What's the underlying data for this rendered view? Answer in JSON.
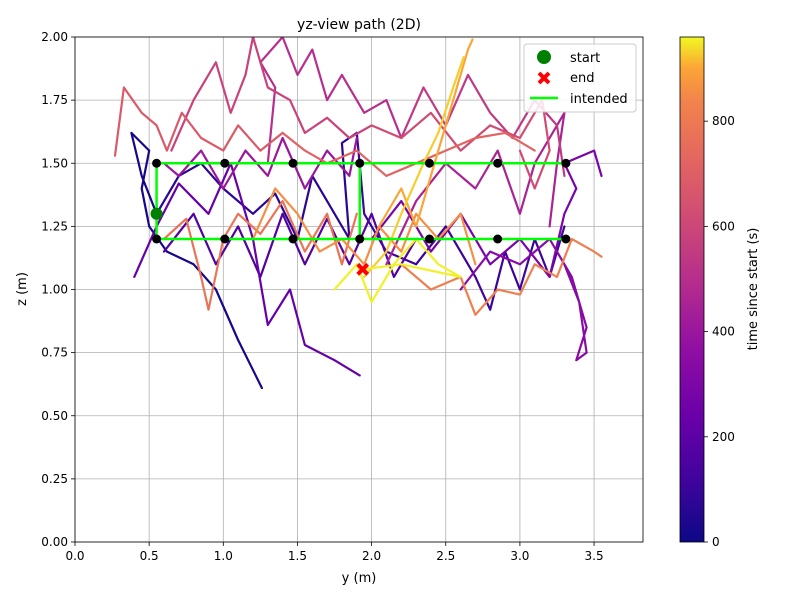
{
  "chart_data": {
    "type": "line",
    "title": "yz-view path (2D)",
    "xlabel": "y (m)",
    "ylabel": "z (m)",
    "xlim": [
      0,
      3.83
    ],
    "ylim": [
      0,
      2.0
    ],
    "x_ticks": [
      0.0,
      0.5,
      1.0,
      1.5,
      2.0,
      2.5,
      3.0,
      3.5
    ],
    "x_tick_labels": [
      "0.0",
      "0.5",
      "1.0",
      "1.5",
      "2.0",
      "2.5",
      "3.0",
      "3.5"
    ],
    "y_ticks": [
      0.0,
      0.25,
      0.5,
      0.75,
      1.0,
      1.25,
      1.5,
      1.75,
      2.0
    ],
    "y_tick_labels": [
      "0.00",
      "0.25",
      "0.50",
      "0.75",
      "1.00",
      "1.25",
      "1.50",
      "1.75",
      "2.00"
    ],
    "grid": true,
    "legend_position": "top-right",
    "legend": [
      {
        "label": "start",
        "marker": "circle",
        "color": "#008000"
      },
      {
        "label": "end",
        "marker": "x",
        "color": "#ff0000"
      },
      {
        "label": "intended",
        "marker": "line",
        "color": "#00ff00"
      }
    ],
    "colorbar": {
      "label": "time since start (s)",
      "colormap": "plasma",
      "range": [
        0,
        960
      ],
      "ticks": [
        0,
        200,
        400,
        600,
        800
      ],
      "tick_labels": [
        "0",
        "200",
        "400",
        "600",
        "800"
      ]
    },
    "intended_path": {
      "color": "#00ff00",
      "points": [
        [
          0.55,
          1.5
        ],
        [
          3.31,
          1.5
        ],
        [
          1.92,
          1.5
        ],
        [
          1.92,
          1.2
        ],
        [
          3.31,
          1.2
        ],
        [
          0.55,
          1.2
        ],
        [
          0.55,
          1.5
        ]
      ]
    },
    "waypoints": [
      [
        0.55,
        1.5
      ],
      [
        1.01,
        1.5
      ],
      [
        1.47,
        1.5
      ],
      [
        1.92,
        1.5
      ],
      [
        2.39,
        1.5
      ],
      [
        2.85,
        1.5
      ],
      [
        3.31,
        1.5
      ],
      [
        0.55,
        1.2
      ],
      [
        1.01,
        1.2
      ],
      [
        1.47,
        1.2
      ],
      [
        1.92,
        1.2
      ],
      [
        2.39,
        1.2
      ],
      [
        2.85,
        1.2
      ],
      [
        3.31,
        1.2
      ]
    ],
    "start_point": [
      0.55,
      1.3
    ],
    "end_point": [
      1.94,
      1.08
    ],
    "path_segments": [
      {
        "t": 20,
        "points": [
          [
            1.26,
            0.61
          ],
          [
            1.1,
            0.8
          ],
          [
            0.95,
            1.0
          ],
          [
            0.8,
            1.1
          ],
          [
            0.62,
            1.15
          ],
          [
            0.5,
            1.25
          ],
          [
            0.45,
            1.4
          ],
          [
            0.5,
            1.55
          ],
          [
            0.38,
            1.62
          ],
          [
            0.45,
            1.45
          ],
          [
            0.55,
            1.3
          ]
        ]
      },
      {
        "t": 70,
        "points": [
          [
            0.55,
            1.3
          ],
          [
            0.7,
            1.45
          ],
          [
            0.85,
            1.5
          ],
          [
            1.0,
            1.4
          ],
          [
            1.2,
            1.3
          ],
          [
            1.35,
            1.38
          ],
          [
            1.5,
            1.2
          ],
          [
            1.6,
            1.45
          ],
          [
            1.7,
            1.35
          ],
          [
            1.85,
            1.2
          ],
          [
            1.8,
            1.58
          ],
          [
            1.9,
            1.62
          ]
        ]
      },
      {
        "t": 110,
        "points": [
          [
            1.9,
            1.62
          ],
          [
            1.95,
            1.3
          ],
          [
            2.1,
            1.15
          ],
          [
            2.3,
            1.1
          ],
          [
            2.5,
            1.25
          ],
          [
            2.7,
            1.05
          ],
          [
            2.8,
            0.92
          ],
          [
            2.9,
            1.15
          ],
          [
            3.0,
            1.0
          ],
          [
            3.1,
            1.2
          ],
          [
            3.2,
            1.05
          ],
          [
            3.3,
            1.25
          ]
        ]
      },
      {
        "t": 170,
        "points": [
          [
            0.6,
            1.15
          ],
          [
            0.8,
            1.3
          ],
          [
            0.95,
            1.1
          ],
          [
            1.1,
            1.25
          ],
          [
            1.25,
            1.05
          ],
          [
            1.4,
            1.3
          ],
          [
            1.55,
            1.1
          ],
          [
            1.7,
            1.28
          ],
          [
            1.85,
            1.1
          ],
          [
            2.0,
            1.3
          ],
          [
            2.15,
            1.05
          ],
          [
            2.3,
            1.2
          ]
        ]
      },
      {
        "t": 230,
        "points": [
          [
            0.4,
            1.05
          ],
          [
            0.55,
            1.25
          ],
          [
            0.7,
            1.42
          ],
          [
            0.9,
            1.3
          ],
          [
            1.05,
            1.5
          ],
          [
            1.2,
            1.2
          ],
          [
            1.3,
            0.86
          ],
          [
            1.45,
            1.0
          ],
          [
            1.55,
            0.78
          ],
          [
            1.75,
            0.72
          ],
          [
            1.92,
            0.66
          ]
        ]
      },
      {
        "t": 290,
        "points": [
          [
            2.0,
            1.2
          ],
          [
            2.2,
            1.35
          ],
          [
            2.4,
            1.15
          ],
          [
            2.6,
            1.3
          ],
          [
            2.8,
            1.1
          ],
          [
            3.0,
            1.2
          ],
          [
            3.2,
            1.05
          ],
          [
            3.3,
            1.3
          ],
          [
            3.38,
            1.4
          ],
          [
            3.3,
            1.5
          ],
          [
            3.5,
            1.55
          ],
          [
            3.55,
            1.45
          ]
        ]
      },
      {
        "t": 340,
        "points": [
          [
            2.6,
            1.0
          ],
          [
            2.8,
            1.15
          ],
          [
            3.0,
            1.1
          ],
          [
            3.2,
            1.2
          ],
          [
            3.35,
            1.05
          ],
          [
            3.45,
            0.85
          ],
          [
            3.38,
            0.72
          ],
          [
            3.45,
            0.75
          ],
          [
            3.4,
            0.95
          ],
          [
            3.3,
            1.1
          ]
        ]
      },
      {
        "t": 400,
        "points": [
          [
            1.9,
            1.6
          ],
          [
            1.85,
            1.45
          ],
          [
            1.7,
            1.55
          ],
          [
            1.55,
            1.4
          ],
          [
            1.4,
            1.6
          ],
          [
            1.3,
            1.45
          ],
          [
            1.15,
            1.55
          ],
          [
            1.0,
            1.4
          ],
          [
            0.85,
            1.55
          ],
          [
            0.7,
            1.45
          ],
          [
            0.6,
            1.5
          ]
        ]
      },
      {
        "t": 450,
        "points": [
          [
            2.1,
            1.1
          ],
          [
            2.3,
            1.35
          ],
          [
            2.5,
            1.5
          ],
          [
            2.7,
            1.4
          ],
          [
            2.85,
            1.55
          ],
          [
            3.0,
            1.3
          ],
          [
            3.1,
            1.5
          ],
          [
            3.2,
            1.6
          ],
          [
            3.3,
            1.7
          ],
          [
            3.25,
            1.5
          ],
          [
            3.2,
            1.25
          ]
        ]
      },
      {
        "t": 500,
        "points": [
          [
            1.3,
            1.5
          ],
          [
            1.35,
            1.8
          ],
          [
            1.25,
            1.9
          ],
          [
            1.4,
            2.0
          ],
          [
            1.5,
            1.85
          ],
          [
            1.6,
            1.95
          ],
          [
            1.7,
            1.75
          ],
          [
            1.8,
            1.85
          ],
          [
            1.95,
            1.7
          ],
          [
            2.1,
            1.75
          ],
          [
            2.2,
            1.6
          ]
        ]
      },
      {
        "t": 540,
        "points": [
          [
            2.2,
            1.6
          ],
          [
            2.35,
            1.8
          ],
          [
            2.5,
            1.65
          ],
          [
            2.65,
            1.85
          ],
          [
            2.8,
            1.7
          ],
          [
            2.95,
            1.6
          ],
          [
            3.1,
            1.75
          ],
          [
            3.25,
            1.65
          ],
          [
            3.3,
            1.45
          ]
        ]
      },
      {
        "t": 580,
        "points": [
          [
            0.65,
            1.55
          ],
          [
            0.8,
            1.75
          ],
          [
            0.95,
            1.9
          ],
          [
            1.05,
            1.7
          ],
          [
            1.15,
            1.85
          ],
          [
            1.2,
            2.0
          ],
          [
            1.3,
            1.8
          ],
          [
            1.45,
            1.75
          ],
          [
            1.55,
            1.62
          ],
          [
            1.7,
            1.68
          ],
          [
            1.85,
            1.6
          ],
          [
            2.0,
            1.65
          ]
        ]
      },
      {
        "t": 620,
        "points": [
          [
            2.0,
            1.65
          ],
          [
            2.2,
            1.6
          ],
          [
            2.4,
            1.7
          ],
          [
            2.6,
            1.55
          ],
          [
            2.8,
            1.65
          ],
          [
            3.0,
            1.6
          ],
          [
            3.15,
            1.75
          ],
          [
            3.2,
            1.55
          ],
          [
            3.1,
            1.4
          ],
          [
            3.0,
            1.55
          ]
        ]
      },
      {
        "t": 680,
        "points": [
          [
            0.27,
            1.53
          ],
          [
            0.33,
            1.8
          ],
          [
            0.45,
            1.7
          ],
          [
            0.55,
            1.65
          ],
          [
            0.62,
            1.55
          ],
          [
            0.72,
            1.7
          ],
          [
            0.85,
            1.6
          ],
          [
            1.0,
            1.55
          ],
          [
            1.1,
            1.65
          ],
          [
            1.25,
            1.55
          ],
          [
            1.4,
            1.62
          ]
        ]
      },
      {
        "t": 720,
        "points": [
          [
            1.4,
            1.62
          ],
          [
            1.55,
            1.55
          ],
          [
            1.7,
            1.5
          ],
          [
            1.9,
            1.55
          ],
          [
            2.1,
            1.45
          ],
          [
            2.3,
            1.5
          ],
          [
            2.5,
            1.55
          ],
          [
            2.7,
            1.6
          ],
          [
            2.9,
            1.62
          ],
          [
            3.1,
            1.55
          ]
        ]
      },
      {
        "t": 780,
        "points": [
          [
            0.6,
            1.2
          ],
          [
            0.75,
            1.28
          ],
          [
            0.85,
            1.05
          ],
          [
            0.9,
            0.92
          ],
          [
            1.0,
            1.2
          ],
          [
            1.1,
            1.3
          ],
          [
            1.25,
            1.22
          ],
          [
            1.4,
            1.35
          ],
          [
            1.55,
            1.15
          ],
          [
            1.7,
            1.3
          ],
          [
            1.8,
            1.1
          ],
          [
            1.9,
            1.3
          ]
        ]
      },
      {
        "t": 820,
        "points": [
          [
            2.2,
            1.1
          ],
          [
            2.4,
            1.0
          ],
          [
            2.6,
            1.05
          ],
          [
            2.7,
            0.9
          ],
          [
            2.85,
            1.0
          ],
          [
            3.0,
            0.98
          ],
          [
            3.1,
            1.1
          ],
          [
            3.25,
            1.05
          ],
          [
            3.35,
            1.2
          ],
          [
            3.5,
            1.15
          ],
          [
            3.55,
            1.13
          ]
        ]
      },
      {
        "t": 860,
        "points": [
          [
            1.2,
            1.2
          ],
          [
            1.35,
            1.4
          ],
          [
            1.5,
            1.3
          ],
          [
            1.65,
            1.15
          ],
          [
            1.8,
            1.2
          ],
          [
            1.95,
            1.1
          ],
          [
            2.05,
            1.25
          ],
          [
            2.2,
            1.15
          ],
          [
            2.3,
            1.3
          ],
          [
            2.45,
            1.2
          ],
          [
            2.6,
            1.3
          ],
          [
            2.7,
            1.1
          ]
        ]
      },
      {
        "t": 900,
        "points": [
          [
            2.05,
            1.25
          ],
          [
            2.2,
            1.4
          ],
          [
            2.3,
            1.25
          ],
          [
            2.45,
            1.55
          ],
          [
            2.55,
            1.75
          ],
          [
            2.65,
            1.95
          ],
          [
            2.68,
            1.99
          ]
        ]
      },
      {
        "t": 930,
        "points": [
          [
            1.95,
            1.05
          ],
          [
            2.1,
            1.15
          ],
          [
            2.2,
            1.3
          ],
          [
            2.35,
            1.5
          ],
          [
            2.45,
            1.62
          ],
          [
            2.55,
            1.8
          ],
          [
            2.62,
            1.92
          ]
        ]
      },
      {
        "t": 955,
        "points": [
          [
            1.75,
            1.0
          ],
          [
            1.9,
            1.1
          ],
          [
            2.0,
            0.95
          ],
          [
            2.15,
            1.1
          ],
          [
            2.3,
            1.2
          ],
          [
            2.45,
            1.1
          ],
          [
            2.6,
            1.05
          ],
          [
            2.2,
            1.1
          ],
          [
            1.94,
            1.08
          ]
        ]
      }
    ]
  }
}
